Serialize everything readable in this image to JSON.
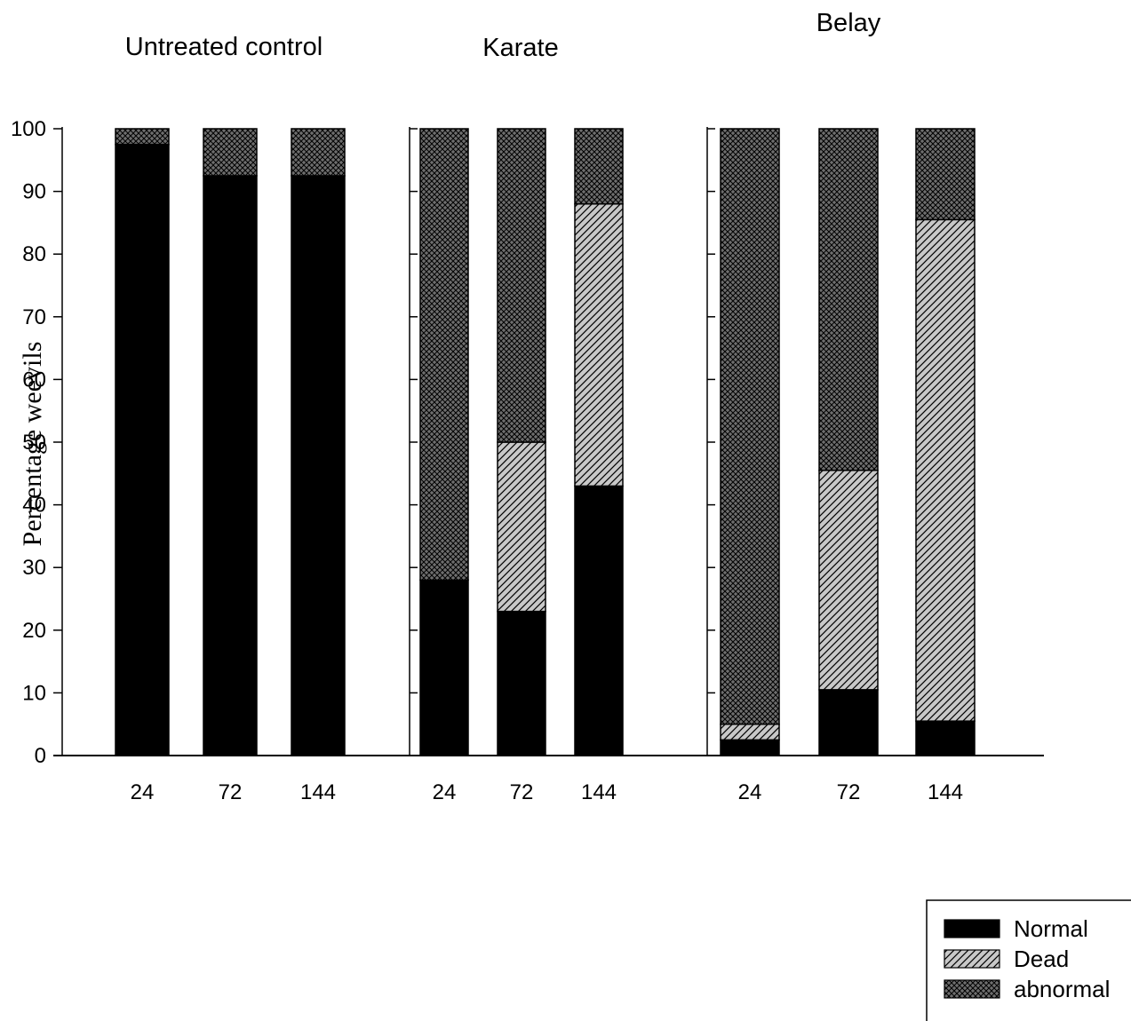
{
  "chart_data": {
    "type": "bar",
    "stacked": true,
    "ylabel": "Percentage weevils",
    "ylim": [
      0,
      100
    ],
    "yticks": [
      0,
      10,
      20,
      30,
      40,
      50,
      60,
      70,
      80,
      90,
      100
    ],
    "grid": false,
    "legend_position": "bottom-right",
    "legend": [
      {
        "key": "normal",
        "label": "Normal",
        "pattern": "solid"
      },
      {
        "key": "dead",
        "label": "Dead",
        "pattern": "diagonal-hatch"
      },
      {
        "key": "abnormal",
        "label": "abnormal",
        "pattern": "crosshatch"
      }
    ],
    "colors": {
      "normal": "#000000",
      "dead_bg": "#c8c8c8",
      "abnormal_bg": "#6e6e6e",
      "line": "#000000"
    },
    "groups": [
      {
        "title": "Untreated control",
        "categories": [
          "24",
          "72",
          "144"
        ],
        "series": [
          {
            "key": "normal",
            "values": [
              97.5,
              92.5,
              92.5
            ]
          },
          {
            "key": "dead",
            "values": [
              0,
              0,
              0
            ]
          },
          {
            "key": "abnormal",
            "values": [
              2.5,
              7.5,
              7.5
            ]
          }
        ]
      },
      {
        "title": "Karate",
        "categories": [
          "24",
          "72",
          "144"
        ],
        "series": [
          {
            "key": "normal",
            "values": [
              28,
              23,
              43
            ]
          },
          {
            "key": "dead",
            "values": [
              0,
              27,
              45
            ]
          },
          {
            "key": "abnormal",
            "values": [
              72,
              50,
              12
            ]
          }
        ]
      },
      {
        "title": "Belay",
        "categories": [
          "24",
          "72",
          "144"
        ],
        "series": [
          {
            "key": "normal",
            "values": [
              2.5,
              10.5,
              5.5
            ]
          },
          {
            "key": "dead",
            "values": [
              2.5,
              35,
              80
            ]
          },
          {
            "key": "abnormal",
            "values": [
              95,
              54.5,
              14.5
            ]
          }
        ]
      }
    ]
  }
}
